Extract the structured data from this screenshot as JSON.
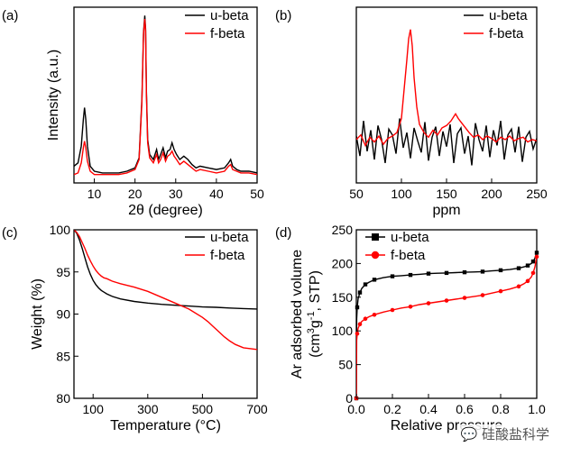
{
  "chart_data": [
    {
      "panel_label": "(a)",
      "type": "line",
      "xlabel": "2θ (degree)",
      "ylabel": "Intensity (a.u.)",
      "xlim": [
        5,
        50
      ],
      "x_ticks": [
        "10",
        "20",
        "30",
        "40",
        "50"
      ],
      "y_ticks": [],
      "legend_position": "top-right",
      "series": [
        {
          "name": "u-beta",
          "color": "#000000",
          "x": [
            5,
            6,
            6.8,
            7.3,
            7.6,
            7.9,
            8.3,
            9,
            10,
            12,
            14,
            16,
            18,
            20,
            21,
            21.7,
            22.1,
            22.4,
            22.6,
            22.8,
            23.1,
            23.6,
            24.5,
            25.3,
            25.8,
            26.3,
            26.9,
            27.5,
            28,
            28.6,
            29.1,
            29.6,
            30.2,
            31,
            32,
            33,
            34,
            35,
            36,
            38,
            40,
            42,
            43,
            43.5,
            44,
            45,
            46,
            48,
            50
          ],
          "y": [
            0.1,
            0.12,
            0.22,
            0.38,
            0.45,
            0.38,
            0.22,
            0.1,
            0.07,
            0.06,
            0.06,
            0.06,
            0.07,
            0.09,
            0.15,
            0.5,
            0.9,
            1.0,
            0.92,
            0.55,
            0.26,
            0.17,
            0.14,
            0.2,
            0.14,
            0.17,
            0.21,
            0.15,
            0.19,
            0.2,
            0.24,
            0.2,
            0.17,
            0.14,
            0.16,
            0.14,
            0.11,
            0.09,
            0.1,
            0.09,
            0.08,
            0.09,
            0.12,
            0.14,
            0.1,
            0.08,
            0.07,
            0.07,
            0.06
          ]
        },
        {
          "name": "f-beta",
          "color": "#ff0000",
          "x": [
            5,
            6,
            6.8,
            7.3,
            7.6,
            7.9,
            8.3,
            9,
            10,
            12,
            14,
            16,
            18,
            20,
            21,
            21.7,
            22.1,
            22.4,
            22.6,
            22.8,
            23.1,
            23.6,
            24.5,
            25.3,
            25.8,
            26.3,
            26.9,
            27.5,
            28,
            28.6,
            29.1,
            29.6,
            30.2,
            31,
            32,
            33,
            34,
            35,
            36,
            38,
            40,
            42,
            43,
            43.5,
            44,
            45,
            46,
            48,
            50
          ],
          "y": [
            0.05,
            0.06,
            0.12,
            0.21,
            0.25,
            0.21,
            0.13,
            0.07,
            0.05,
            0.05,
            0.05,
            0.05,
            0.06,
            0.08,
            0.14,
            0.48,
            0.89,
            0.98,
            0.91,
            0.53,
            0.24,
            0.15,
            0.12,
            0.17,
            0.12,
            0.14,
            0.18,
            0.13,
            0.16,
            0.17,
            0.19,
            0.16,
            0.14,
            0.11,
            0.13,
            0.11,
            0.09,
            0.07,
            0.08,
            0.07,
            0.06,
            0.07,
            0.1,
            0.11,
            0.08,
            0.07,
            0.06,
            0.06,
            0.05
          ]
        }
      ]
    },
    {
      "panel_label": "(b)",
      "type": "line",
      "xlabel": "ppm",
      "ylabel": "",
      "xlim": [
        50,
        250
      ],
      "x_ticks": [
        "50",
        "100",
        "150",
        "200",
        "250"
      ],
      "y_ticks": [],
      "legend_position": "top-right",
      "series": [
        {
          "name": "u-beta",
          "color": "#000000",
          "x": [
            50,
            54,
            58,
            62,
            66,
            70,
            74,
            78,
            82,
            86,
            90,
            94,
            98,
            102,
            106,
            110,
            114,
            118,
            122,
            126,
            130,
            134,
            138,
            142,
            146,
            150,
            154,
            158,
            162,
            166,
            170,
            174,
            178,
            182,
            186,
            190,
            194,
            198,
            202,
            206,
            210,
            214,
            218,
            222,
            226,
            230,
            234,
            238,
            242,
            246,
            250
          ],
          "y": [
            0.05,
            -0.12,
            0.18,
            -0.08,
            0.1,
            -0.15,
            0.14,
            0.02,
            -0.18,
            0.11,
            0.06,
            -0.1,
            0.2,
            -0.05,
            0.08,
            -0.14,
            0.12,
            0.01,
            -0.09,
            0.17,
            -0.16,
            0.04,
            0.13,
            -0.12,
            0.09,
            -0.04,
            0.15,
            -0.18,
            0.07,
            0.12,
            -0.1,
            0.05,
            -0.2,
            0.16,
            0.02,
            -0.08,
            0.14,
            -0.13,
            0.1,
            -0.03,
            0.18,
            -0.15,
            0.06,
            0.11,
            -0.09,
            0.13,
            -0.17,
            0.04,
            0.09,
            -0.06,
            0.03
          ]
        },
        {
          "name": "f-beta",
          "color": "#ff0000",
          "x": [
            50,
            55,
            60,
            65,
            70,
            75,
            80,
            85,
            90,
            95,
            100,
            103,
            106,
            108,
            110,
            112,
            114,
            117,
            120,
            125,
            130,
            135,
            140,
            145,
            150,
            155,
            160,
            163,
            166,
            170,
            175,
            180,
            185,
            190,
            195,
            200,
            205,
            210,
            215,
            220,
            225,
            230,
            235,
            240,
            245,
            250
          ],
          "y": [
            0.02,
            0.06,
            -0.03,
            0.04,
            0.0,
            0.05,
            -0.02,
            0.03,
            0.05,
            0.08,
            0.2,
            0.45,
            0.7,
            0.88,
            0.96,
            0.82,
            0.55,
            0.3,
            0.15,
            0.08,
            0.04,
            0.1,
            0.06,
            0.12,
            0.14,
            0.18,
            0.24,
            0.2,
            0.17,
            0.13,
            0.08,
            0.04,
            0.06,
            0.02,
            0.05,
            0.03,
            0.0,
            0.04,
            0.02,
            0.05,
            0.01,
            0.03,
            0.04,
            0.0,
            0.02,
            0.01
          ]
        }
      ]
    },
    {
      "panel_label": "(c)",
      "type": "line",
      "xlabel": "Temperature (°C)",
      "ylabel": "Weight (%)",
      "xlim": [
        30,
        700
      ],
      "ylim": [
        80,
        100
      ],
      "x_ticks": [
        100,
        300,
        500,
        700
      ],
      "y_ticks": [
        80,
        85,
        90,
        95,
        100
      ],
      "legend_position": "top-right",
      "series": [
        {
          "name": "u-beta",
          "color": "#000000",
          "x": [
            30,
            40,
            50,
            60,
            70,
            80,
            90,
            100,
            110,
            120,
            130,
            140,
            150,
            170,
            200,
            250,
            300,
            350,
            400,
            450,
            500,
            550,
            600,
            650,
            700
          ],
          "y": [
            100,
            99.6,
            98.8,
            97.8,
            96.7,
            95.6,
            94.7,
            94.0,
            93.5,
            93.1,
            92.8,
            92.6,
            92.4,
            92.1,
            91.8,
            91.5,
            91.3,
            91.15,
            91.05,
            90.95,
            90.85,
            90.8,
            90.72,
            90.65,
            90.6
          ]
        },
        {
          "name": "f-beta",
          "color": "#ff0000",
          "x": [
            30,
            40,
            50,
            60,
            70,
            80,
            90,
            100,
            110,
            120,
            130,
            140,
            150,
            170,
            200,
            250,
            300,
            350,
            400,
            450,
            500,
            520,
            540,
            560,
            580,
            600,
            620,
            650,
            700
          ],
          "y": [
            100,
            99.7,
            99.2,
            98.5,
            97.8,
            97.0,
            96.3,
            95.7,
            95.2,
            94.8,
            94.5,
            94.3,
            94.2,
            93.9,
            93.6,
            93.2,
            92.7,
            92.0,
            91.3,
            90.6,
            89.6,
            89.1,
            88.5,
            87.9,
            87.3,
            86.8,
            86.4,
            86.0,
            85.8
          ]
        }
      ]
    },
    {
      "panel_label": "(d)",
      "type": "line",
      "xlabel": "Relative pressure",
      "ylabel_line1": "Ar adsorbed volume",
      "ylabel_line2_pre": "(cm",
      "ylabel_sup1": "3",
      "ylabel_line2_mid": "g",
      "ylabel_sup2": "-1",
      "ylabel_line2_post": ", STP)",
      "xlim": [
        0,
        1.0
      ],
      "ylim": [
        0,
        250
      ],
      "x_ticks": [
        "0.0",
        "0.2",
        "0.4",
        "0.6",
        "0.8",
        "1.0"
      ],
      "y_ticks": [
        0,
        50,
        100,
        150,
        200,
        250
      ],
      "legend_position": "top-left",
      "series": [
        {
          "name": "u-beta",
          "color": "#000000",
          "marker": "square",
          "x": [
            0.0,
            0.002,
            0.005,
            0.01,
            0.02,
            0.03,
            0.05,
            0.07,
            0.1,
            0.15,
            0.2,
            0.25,
            0.3,
            0.35,
            0.4,
            0.45,
            0.5,
            0.55,
            0.6,
            0.65,
            0.7,
            0.75,
            0.8,
            0.85,
            0.9,
            0.93,
            0.95,
            0.97,
            0.98,
            0.99,
            1.0
          ],
          "y": [
            0,
            118,
            135,
            148,
            157,
            163,
            169,
            172,
            176,
            179,
            181,
            182,
            183,
            184,
            185,
            185.5,
            186,
            186.5,
            187,
            187.5,
            188,
            189,
            190,
            191,
            193,
            195,
            197,
            200,
            203,
            208,
            216
          ]
        },
        {
          "name": "f-beta",
          "color": "#ff0000",
          "marker": "circle",
          "x": [
            0.0,
            0.002,
            0.005,
            0.01,
            0.02,
            0.03,
            0.05,
            0.07,
            0.1,
            0.15,
            0.2,
            0.25,
            0.3,
            0.35,
            0.4,
            0.45,
            0.5,
            0.55,
            0.6,
            0.65,
            0.7,
            0.75,
            0.8,
            0.85,
            0.9,
            0.93,
            0.95,
            0.97,
            0.98,
            0.99,
            1.0
          ],
          "y": [
            0,
            86,
            96,
            104,
            110,
            114,
            118,
            121,
            124,
            128,
            131,
            134,
            136,
            139,
            141,
            143,
            145,
            147,
            149,
            151,
            153,
            156,
            159,
            162,
            166,
            170,
            174,
            180,
            186,
            195,
            210
          ]
        }
      ]
    }
  ],
  "watermark": "💬 硅酸盐科学"
}
